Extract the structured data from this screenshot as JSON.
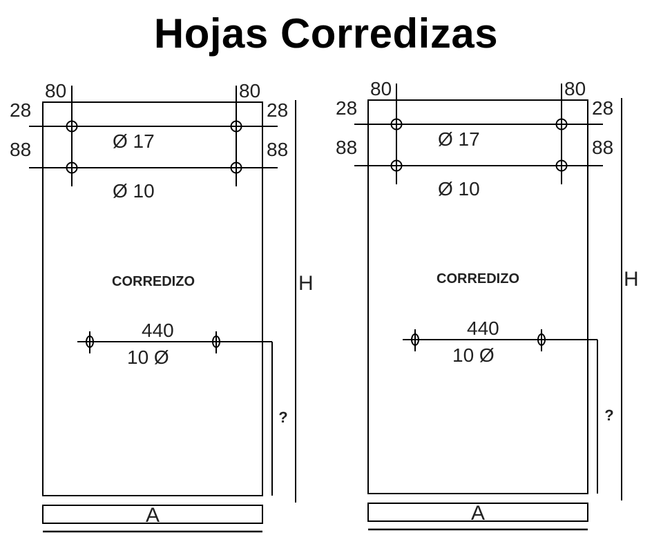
{
  "title": "Hojas Corredizas",
  "panels": [
    {
      "label": "CORREDIZO",
      "dim_left_top": "80",
      "dim_right_top": "80",
      "dim_left_first": "28",
      "dim_right_first": "28",
      "dim_left_second": "88",
      "dim_right_second": "88",
      "hole_upper": "Ø 17",
      "hole_lower": "Ø 10",
      "handle_spacing": "440",
      "handle_hole": "10 Ø",
      "height_label": "H",
      "unknown_label": "?",
      "width_label": "A"
    },
    {
      "label": "CORREDIZO",
      "dim_left_top": "80",
      "dim_right_top": "80",
      "dim_left_first": "28",
      "dim_right_first": "28",
      "dim_left_second": "88",
      "dim_right_second": "88",
      "hole_upper": "Ø 17",
      "hole_lower": "Ø 10",
      "handle_spacing": "440",
      "handle_hole": "10 Ø",
      "height_label": "H",
      "unknown_label": "?",
      "width_label": "A"
    }
  ]
}
